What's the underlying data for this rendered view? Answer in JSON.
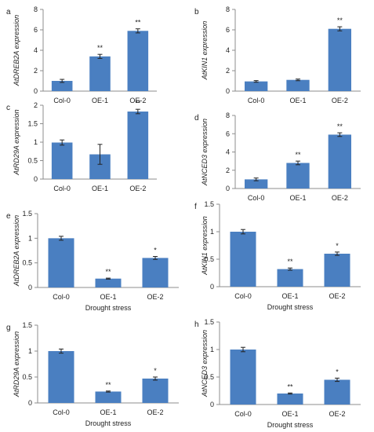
{
  "figure": {
    "colors": {
      "bar": "#4a7fc1",
      "axis": "#8c8c8c",
      "text": "#222222"
    }
  },
  "chart_data": [
    {
      "type": "bar",
      "panel": "a",
      "ylabel": "AtDREB2A expression",
      "xlabel": "",
      "categories": [
        "Col-0",
        "OE-1",
        "OE-2"
      ],
      "values": [
        1.0,
        3.4,
        5.9
      ],
      "errors": [
        0.15,
        0.2,
        0.2
      ],
      "significance": [
        "",
        "**",
        "**"
      ],
      "ylim": [
        0,
        8
      ],
      "yticks": [
        "0",
        "2",
        "4",
        "6",
        "8"
      ],
      "grid": false
    },
    {
      "type": "bar",
      "panel": "b",
      "ylabel": "AtKIN1 expression",
      "xlabel": "",
      "categories": [
        "Col-0",
        "OE-1",
        "OE-2"
      ],
      "values": [
        0.95,
        1.1,
        6.1
      ],
      "errors": [
        0.08,
        0.08,
        0.2
      ],
      "significance": [
        "",
        "",
        "**"
      ],
      "ylim": [
        0,
        8
      ],
      "yticks": [
        "0",
        "2",
        "4",
        "6",
        "8"
      ],
      "grid": false
    },
    {
      "type": "bar",
      "panel": "c",
      "ylabel": "AtRD29A expression",
      "xlabel": "",
      "categories": [
        "Col-0",
        "OE-1",
        "OE-2"
      ],
      "values": [
        0.99,
        0.67,
        1.83
      ],
      "errors": [
        0.07,
        0.27,
        0.06
      ],
      "significance": [
        "",
        "",
        "**"
      ],
      "ylim": [
        0,
        2
      ],
      "yticks": [
        "0",
        "0.5",
        "1",
        "1.5",
        "2"
      ],
      "grid": false
    },
    {
      "type": "bar",
      "panel": "d",
      "ylabel": "AtNCED3 expression",
      "xlabel": "",
      "categories": [
        "Col-0",
        "OE-1",
        "OE-2"
      ],
      "values": [
        1.0,
        2.8,
        5.9
      ],
      "errors": [
        0.15,
        0.2,
        0.2
      ],
      "significance": [
        "",
        "**",
        "**"
      ],
      "ylim": [
        0,
        8
      ],
      "yticks": [
        "0",
        "2",
        "4",
        "6",
        "8"
      ],
      "grid": false
    },
    {
      "type": "bar",
      "panel": "e",
      "ylabel": "AtDREB2A expression",
      "xlabel": "Drought stress",
      "categories": [
        "Col-0",
        "OE-1",
        "OE-2"
      ],
      "values": [
        1.0,
        0.18,
        0.6
      ],
      "errors": [
        0.04,
        0.01,
        0.03
      ],
      "significance": [
        "",
        "**",
        "*"
      ],
      "ylim": [
        0,
        1.5
      ],
      "yticks": [
        "0",
        "0.5",
        "1",
        "1.5"
      ],
      "grid": false
    },
    {
      "type": "bar",
      "panel": "f",
      "ylabel": "AtKIN1 expression",
      "xlabel": "Drought stress",
      "categories": [
        "Col-0",
        "OE-1",
        "OE-2"
      ],
      "values": [
        1.0,
        0.32,
        0.6
      ],
      "errors": [
        0.04,
        0.02,
        0.03
      ],
      "significance": [
        "",
        "**",
        "*"
      ],
      "ylim": [
        0,
        1.5
      ],
      "yticks": [
        "0",
        "0.5",
        "1",
        "1.5"
      ],
      "grid": false
    },
    {
      "type": "bar",
      "panel": "g",
      "ylabel": "AtRD29A expression",
      "xlabel": "Drought stress",
      "categories": [
        "Col-0",
        "OE-1",
        "OE-2"
      ],
      "values": [
        1.0,
        0.22,
        0.47
      ],
      "errors": [
        0.04,
        0.01,
        0.03
      ],
      "significance": [
        "",
        "**",
        "*"
      ],
      "ylim": [
        0,
        1.5
      ],
      "yticks": [
        "0",
        "0.5",
        "1",
        "1.5"
      ],
      "grid": false
    },
    {
      "type": "bar",
      "panel": "h",
      "ylabel": "AtNCED3 expression",
      "xlabel": "Drought stress",
      "categories": [
        "Col-0",
        "OE-1",
        "OE-2"
      ],
      "values": [
        1.0,
        0.2,
        0.45
      ],
      "errors": [
        0.04,
        0.01,
        0.03
      ],
      "significance": [
        "",
        "**",
        "*"
      ],
      "ylim": [
        0,
        1.5
      ],
      "yticks": [
        "0",
        "0.5",
        "1",
        "1.5"
      ],
      "grid": false
    }
  ]
}
